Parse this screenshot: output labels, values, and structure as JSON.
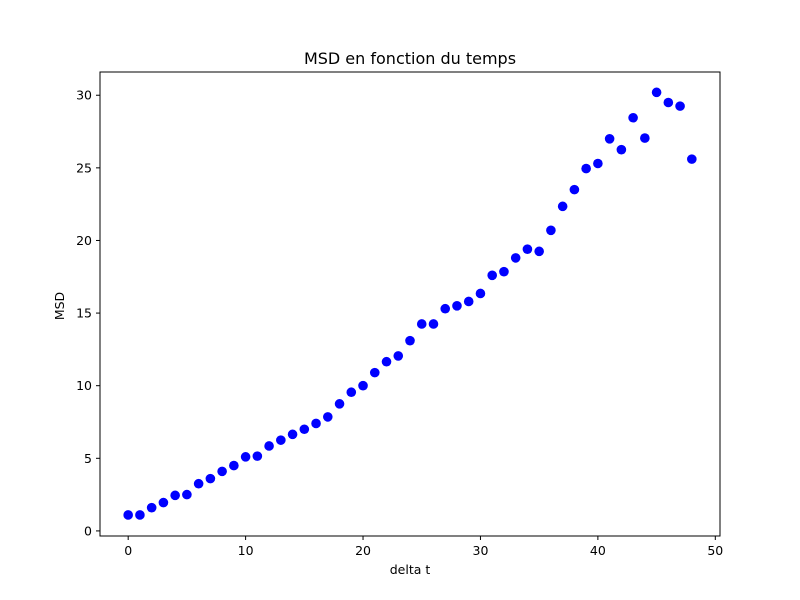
{
  "chart_data": {
    "type": "scatter",
    "title": "MSD en fonction du temps",
    "xlabel": "delta t",
    "ylabel": "MSD",
    "xlim": [
      -2.4,
      50.4
    ],
    "ylim": [
      -0.35,
      31.6
    ],
    "xticks": [
      0,
      10,
      20,
      30,
      40,
      50
    ],
    "yticks": [
      0,
      5,
      10,
      15,
      20,
      25,
      30
    ],
    "grid": false,
    "marker_color": "#0000ff",
    "series": [
      {
        "x": [
          0,
          1,
          2,
          3,
          4,
          5,
          6,
          7,
          8,
          9,
          10,
          11,
          12,
          13,
          14,
          15,
          16,
          17,
          18,
          19,
          20,
          21,
          22,
          23,
          24,
          25,
          26,
          27,
          28,
          29,
          30,
          31,
          32,
          33,
          34,
          35,
          36,
          37,
          38,
          39,
          40,
          41,
          42,
          43,
          44,
          45,
          46,
          47,
          48
        ],
        "y": [
          1.1,
          1.1,
          1.6,
          1.95,
          2.45,
          2.5,
          3.25,
          3.6,
          4.1,
          4.5,
          5.1,
          5.15,
          5.85,
          6.25,
          6.65,
          7.0,
          7.4,
          7.85,
          8.75,
          9.55,
          10.0,
          10.9,
          11.65,
          12.05,
          13.1,
          14.25,
          14.25,
          15.3,
          15.5,
          15.8,
          16.35,
          17.6,
          17.85,
          18.8,
          19.4,
          19.25,
          20.7,
          22.35,
          23.5,
          24.95,
          25.3,
          27.0,
          26.25,
          28.45,
          27.05,
          30.2,
          29.5,
          29.25,
          25.6
        ]
      }
    ]
  }
}
